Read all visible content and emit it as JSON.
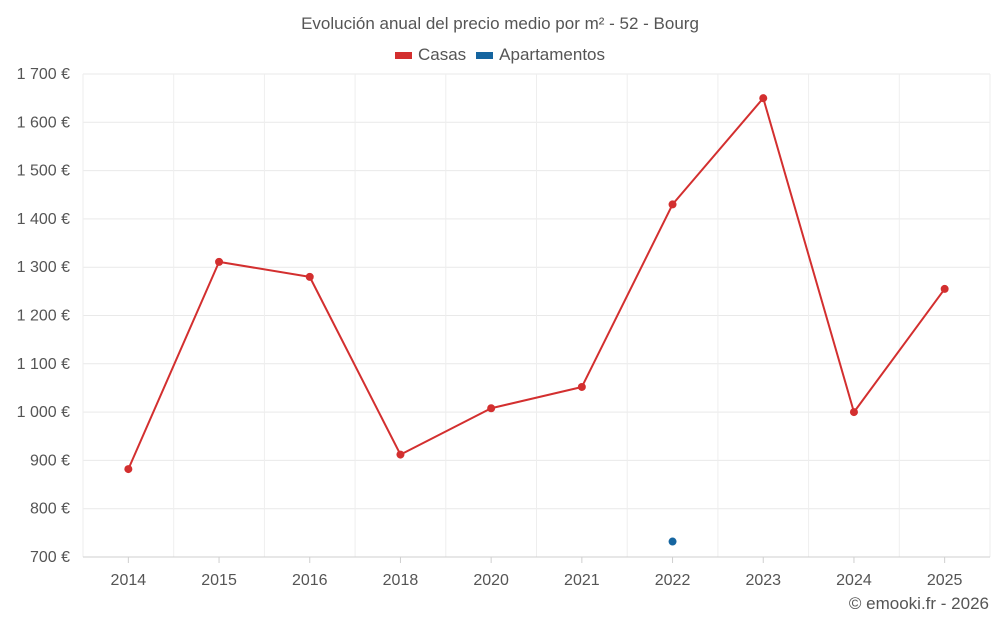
{
  "chart_data": {
    "type": "line",
    "title": "Evolución anual del precio medio por m² - 52 - Bourg",
    "categories": [
      "2014",
      "2015",
      "2016",
      "2018",
      "2020",
      "2021",
      "2022",
      "2023",
      "2024",
      "2025"
    ],
    "y_tick_labels": [
      "700 €",
      "800 €",
      "900 €",
      "1 000 €",
      "1 100 €",
      "1 200 €",
      "1 300 €",
      "1 400 €",
      "1 500 €",
      "1 600 €",
      "1 700 €"
    ],
    "y_ticks": [
      700,
      800,
      900,
      1000,
      1100,
      1200,
      1300,
      1400,
      1500,
      1600,
      1700
    ],
    "ylim": [
      700,
      1700
    ],
    "grid": true,
    "legend_position": "top-center",
    "series": [
      {
        "name": "Casas",
        "color": "#d32f2f",
        "values": [
          882,
          1311,
          1280,
          912,
          1008,
          1052,
          1430,
          1650,
          1000,
          1255
        ]
      },
      {
        "name": "Apartamentos",
        "color": "#1565a0",
        "values": [
          null,
          null,
          null,
          null,
          null,
          null,
          732,
          null,
          null,
          null
        ]
      }
    ]
  },
  "credit": "© emooki.fr - 2026"
}
